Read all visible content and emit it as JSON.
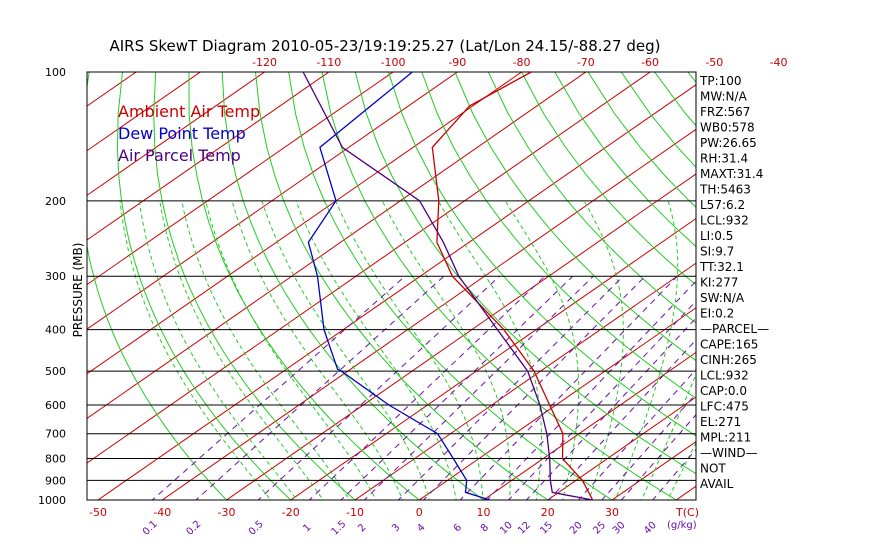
{
  "chart_data": {
    "type": "line",
    "title": "AIRS SkewT Diagram 2010-05-23/19:19:25.27 (Lat/Lon 24.15/-88.27 deg)",
    "ylabel": "PRESSURE (MB)",
    "pressure_ticks": [
      100,
      200,
      300,
      400,
      500,
      600,
      700,
      800,
      900,
      1000
    ],
    "top_temp_ticks": [
      "-120",
      "-110",
      "-100",
      "-90",
      "-80",
      "-70",
      "-60",
      "-50",
      "-40"
    ],
    "bottom_temp_ticks": [
      "-50",
      "-40",
      "-30",
      "-20",
      "-10",
      "0",
      "10",
      "20",
      "30"
    ],
    "bottom_unit": "T(C)",
    "mixing_ratio_ticks": [
      "0.1",
      "0.2",
      "0.5",
      "1",
      "1.5",
      "2",
      "3",
      "4",
      "6",
      "8",
      "10",
      "12",
      "15",
      "20",
      "25",
      "30",
      "40"
    ],
    "mixing_unit": "(g/kg)",
    "legend": [
      {
        "name": "Ambient Air Temp",
        "color": "#cc0000"
      },
      {
        "name": "Dew Point Temp",
        "color": "#0000cc"
      },
      {
        "name": "Air Parcel Temp",
        "color": "#4b0082"
      }
    ],
    "series": [
      {
        "name": "Ambient Air Temp",
        "color": "#cc0000",
        "points": [
          [
            100,
            -78.5
          ],
          [
            120,
            -80.5
          ],
          [
            150,
            -77
          ],
          [
            200,
            -64
          ],
          [
            250,
            -55
          ],
          [
            300,
            -45
          ],
          [
            400,
            -25
          ],
          [
            500,
            -11
          ],
          [
            600,
            -1
          ],
          [
            700,
            7.5
          ],
          [
            800,
            13
          ],
          [
            900,
            21
          ],
          [
            1000,
            27
          ]
        ]
      },
      {
        "name": "Dew Point Temp",
        "color": "#0000cc",
        "points": [
          [
            100,
            -97
          ],
          [
            150,
            -94.5
          ],
          [
            200,
            -80
          ],
          [
            250,
            -75
          ],
          [
            300,
            -66
          ],
          [
            400,
            -53
          ],
          [
            495,
            -42
          ],
          [
            500,
            -41
          ],
          [
            600,
            -26
          ],
          [
            700,
            -12
          ],
          [
            800,
            -4
          ],
          [
            900,
            3
          ],
          [
            960,
            5.5
          ],
          [
            1000,
            11
          ]
        ]
      },
      {
        "name": "Air Parcel Temp",
        "color": "#4b0082",
        "points": [
          [
            100,
            -114
          ],
          [
            150,
            -91
          ],
          [
            200,
            -67
          ],
          [
            250,
            -54
          ],
          [
            300,
            -44
          ],
          [
            400,
            -26
          ],
          [
            500,
            -12
          ],
          [
            600,
            -2.5
          ],
          [
            700,
            5
          ],
          [
            800,
            11
          ],
          [
            900,
            16
          ],
          [
            960,
            19
          ],
          [
            1000,
            27
          ]
        ]
      }
    ],
    "grid": true,
    "xlim": [
      -50,
      30
    ],
    "ylim": [
      1000,
      100
    ]
  },
  "sidebar": [
    "TP:100",
    "MW:N/A",
    "FRZ:567",
    "WB0:578",
    "PW:26.65",
    "RH:31.4",
    "MAXT:31.4",
    "TH:5463",
    "L57:6.2",
    "LCL:932",
    "LI:0.5",
    "SI:9.7",
    "TT:32.1",
    "KI:277",
    "SW:N/A",
    "EI:0.2",
    "—PARCEL—",
    "CAPE:165",
    "CINH:265",
    "LCL:932",
    "CAP:0.0",
    "LFC:475",
    "EL:271",
    "MPL:211",
    "—WIND—",
    "NOT",
    "AVAIL"
  ]
}
